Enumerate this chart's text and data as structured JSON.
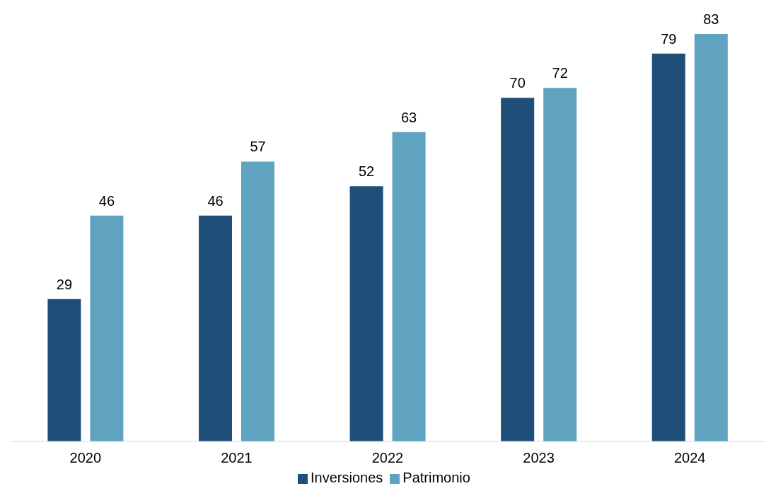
{
  "chart_data": {
    "type": "bar",
    "categories": [
      "2020",
      "2021",
      "2022",
      "2023",
      "2024"
    ],
    "series": [
      {
        "name": "Inversiones",
        "color": "#1f4e79",
        "values": [
          29,
          46,
          52,
          70,
          79
        ]
      },
      {
        "name": "Patrimonio",
        "color": "#5fa3c0",
        "values": [
          46,
          57,
          63,
          72,
          83
        ]
      }
    ],
    "data_labels": true,
    "legend": "bottom"
  }
}
